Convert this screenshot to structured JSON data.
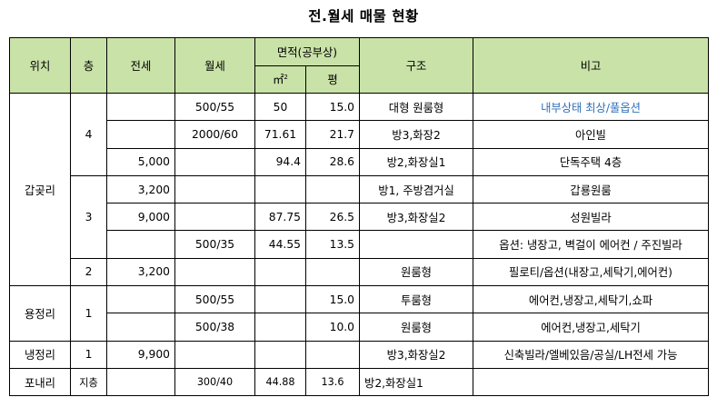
{
  "title": "전.월세 매물 현황",
  "header": {
    "location": "위치",
    "floor": "층",
    "jeonse": "전세",
    "wolse": "월세",
    "area_group": "면적(공부상)",
    "area_m2": "㎡",
    "area_m2_sup": "2",
    "area_pyeong": "평",
    "structure": "구조",
    "remarks": "비고"
  },
  "colors": {
    "header_bg": "#c9e2a8",
    "highlight_text": "#2f6fb8"
  },
  "groups": {
    "gapgot": "갑곶리",
    "yongjeong": "용정리",
    "naengjeong": "냉정리",
    "ponae": "포내리"
  },
  "rows": [
    {
      "floor": "4",
      "jeonse": "",
      "wolse": "500/55",
      "m2": "50",
      "pyeong": "15.0",
      "structure": "대형 원룸형",
      "remark": "내부상태 최상/풀옵션"
    },
    {
      "floor": "",
      "jeonse": "",
      "wolse": "2000/60",
      "m2": "71.61",
      "pyeong": "21.7",
      "structure": "방3,화장2",
      "remark": "아인빌"
    },
    {
      "floor": "",
      "jeonse": "5,000",
      "wolse": "",
      "m2": "94.4",
      "pyeong": "28.6",
      "structure": "방2,화장실1",
      "remark": "단독주택 4층"
    },
    {
      "floor": "3",
      "jeonse": "3,200",
      "wolse": "",
      "m2": "",
      "pyeong": "",
      "structure": "방1, 주방겸거실",
      "remark": "갑룡원룸"
    },
    {
      "floor": "",
      "jeonse": "9,000",
      "wolse": "",
      "m2": "87.75",
      "pyeong": "26.5",
      "structure": "방3,화장실2",
      "remark": "성원빌라"
    },
    {
      "floor": "",
      "jeonse": "",
      "wolse": "500/35",
      "m2": "44.55",
      "pyeong": "13.5",
      "structure": "",
      "remark": "옵션: 냉장고, 벽걸이 에어컨 / 주진빌라"
    },
    {
      "floor": "2",
      "jeonse": "3,200",
      "wolse": "",
      "m2": "",
      "pyeong": "",
      "structure": "원룸형",
      "remark": "필로티/옵션(내장고,세탁기,에어컨)"
    },
    {
      "floor": "1",
      "jeonse": "",
      "wolse": "500/55",
      "m2": "",
      "pyeong": "15.0",
      "structure": "투룸형",
      "remark": "에어컨,냉장고,세탁기,쇼파"
    },
    {
      "floor": "",
      "jeonse": "",
      "wolse": "500/38",
      "m2": "",
      "pyeong": "10.0",
      "structure": "원룸형",
      "remark": "에어컨,냉장고,세탁기"
    },
    {
      "floor": "1",
      "jeonse": "9,900",
      "wolse": "",
      "m2": "",
      "pyeong": "",
      "structure": "방3,화장실2",
      "remark": "신축빌라/엘베있음/공실/LH전세 가능"
    },
    {
      "floor": "지층",
      "jeonse": "",
      "wolse": "300/40",
      "m2": "44.88",
      "pyeong": "13.6",
      "structure": "방2,화장실1",
      "remark": ""
    }
  ]
}
